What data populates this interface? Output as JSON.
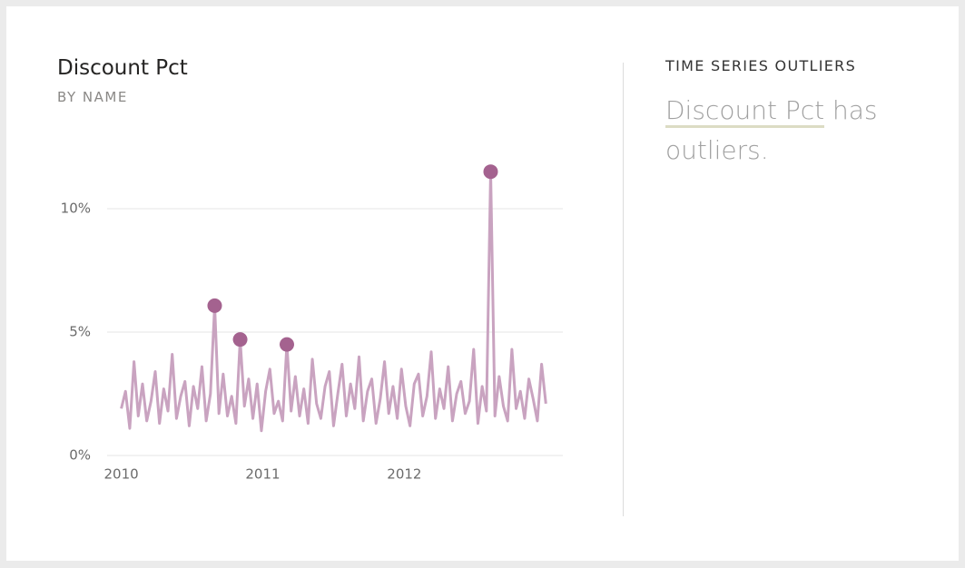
{
  "chart_data": {
    "type": "line",
    "title": "Discount Pct",
    "subtitle": "BY NAME",
    "xlim": [
      2009.9,
      2013.12
    ],
    "xticks": [
      2010,
      2011,
      2012
    ],
    "ylim": [
      0,
      12
    ],
    "yticks": [
      {
        "value": 0,
        "label": "0%"
      },
      {
        "value": 5,
        "label": "5%"
      },
      {
        "value": 10,
        "label": "10%"
      }
    ],
    "grid": true,
    "series": [
      {
        "color": "#c9a3c0",
        "x": [
          2010,
          2010.03,
          2010.06,
          2010.09,
          2010.12,
          2010.15,
          2010.18,
          2010.21,
          2010.24,
          2010.27,
          2010.3,
          2010.33,
          2010.36,
          2010.39,
          2010.42,
          2010.45,
          2010.48,
          2010.51,
          2010.54,
          2010.57,
          2010.6,
          2010.63,
          2010.66,
          2010.69,
          2010.72,
          2010.75,
          2010.78,
          2010.81,
          2010.84,
          2010.87,
          2010.9,
          2010.93,
          2010.96,
          2010.99,
          2011.02,
          2011.05,
          2011.08,
          2011.11,
          2011.14,
          2011.17,
          2011.2,
          2011.23,
          2011.26,
          2011.29,
          2011.32,
          2011.35,
          2011.38,
          2011.41,
          2011.44,
          2011.47,
          2011.5,
          2011.53,
          2011.56,
          2011.59,
          2011.62,
          2011.65,
          2011.68,
          2011.71,
          2011.74,
          2011.77,
          2011.8,
          2011.83,
          2011.86,
          2011.89,
          2011.92,
          2011.95,
          2011.98,
          2012.01,
          2012.04,
          2012.07,
          2012.1,
          2012.13,
          2012.16,
          2012.19,
          2012.22,
          2012.25,
          2012.28,
          2012.31,
          2012.34,
          2012.37,
          2012.4,
          2012.43,
          2012.46,
          2012.49,
          2012.52,
          2012.55,
          2012.58,
          2012.61,
          2012.64,
          2012.67,
          2012.7,
          2012.73,
          2012.76,
          2012.79,
          2012.82,
          2012.85,
          2012.88,
          2012.91,
          2012.94,
          2012.97,
          2013
        ],
        "values": [
          1.9,
          2.6,
          1.1,
          3.8,
          1.6,
          2.9,
          1.4,
          2.2,
          3.4,
          1.3,
          2.7,
          1.8,
          4.1,
          1.5,
          2.4,
          3.0,
          1.2,
          2.8,
          1.9,
          3.6,
          1.4,
          2.5,
          6.07,
          1.7,
          3.3,
          1.6,
          2.4,
          1.3,
          4.7,
          2.0,
          3.1,
          1.5,
          2.9,
          1.0,
          2.6,
          3.5,
          1.7,
          2.2,
          1.4,
          4.5,
          1.8,
          3.2,
          1.6,
          2.7,
          1.3,
          3.9,
          2.1,
          1.5,
          2.8,
          3.4,
          1.2,
          2.5,
          3.7,
          1.6,
          2.9,
          1.9,
          4.0,
          1.4,
          2.6,
          3.1,
          1.3,
          2.3,
          3.8,
          1.7,
          2.8,
          1.5,
          3.5,
          2.0,
          1.2,
          2.9,
          3.3,
          1.6,
          2.4,
          4.2,
          1.5,
          2.7,
          1.9,
          3.6,
          1.4,
          2.5,
          3.0,
          1.7,
          2.2,
          4.3,
          1.3,
          2.8,
          1.8,
          11.5,
          1.6,
          3.2,
          2.0,
          1.4,
          4.3,
          1.9,
          2.6,
          1.5,
          3.1,
          2.3,
          1.4,
          3.7,
          2.1
        ]
      }
    ],
    "outliers": {
      "color": "#a4628f",
      "x": [
        2010.66,
        2010.84,
        2011.17,
        2012.61
      ],
      "values": [
        6.07,
        4.7,
        4.5,
        11.5
      ]
    }
  },
  "insight": {
    "heading": "TIME SERIES OUTLIERS",
    "subject": "Discount Pct",
    "text": " has outliers."
  }
}
